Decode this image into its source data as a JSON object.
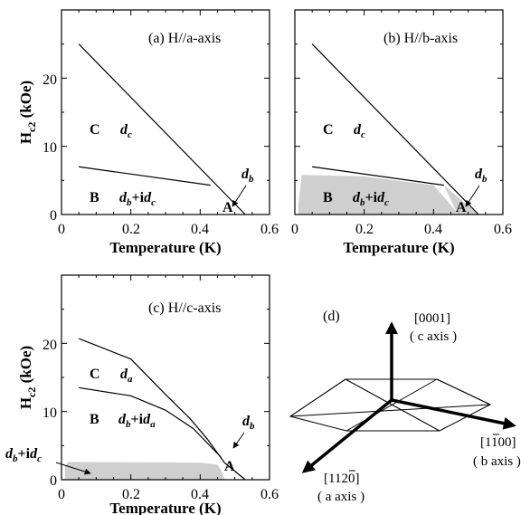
{
  "chart_data": [
    {
      "type": "line",
      "panel": "a",
      "title": "(a) H//a-axis",
      "xlabel": "Temperature (K)",
      "ylabel": "H_c2 (kOe)",
      "xlim": [
        0,
        0.6
      ],
      "ylim": [
        0,
        30
      ],
      "xticks": [
        "0",
        "0.2",
        "0.4",
        "0.6"
      ],
      "yticks": [
        "0",
        "10",
        "20"
      ],
      "series": [
        {
          "x": [
            0.05,
            0.53
          ],
          "y": [
            25,
            0
          ]
        },
        {
          "x": [
            0.05,
            0.43
          ],
          "y": [
            7,
            4.3
          ]
        }
      ],
      "shaded": [],
      "region_labels": [
        {
          "region": "C",
          "phase": "d",
          "phase_sub": "c"
        },
        {
          "region": "B",
          "phase": "d",
          "phase_sub": "b",
          "plus": "+i",
          "plus_sub": "c"
        },
        {
          "region": "A"
        }
      ],
      "annotation": {
        "phase": "d",
        "phase_sub": "b"
      }
    },
    {
      "type": "line",
      "panel": "b",
      "title": "(b) H//b-axis",
      "xlabel": "Temperature (K)",
      "ylabel": "",
      "xlim": [
        0,
        0.6
      ],
      "ylim": [
        0,
        30
      ],
      "xticks": [
        "0",
        "0.2",
        "0.4",
        "0.6"
      ],
      "yticks": [],
      "series": [
        {
          "x": [
            0.05,
            0.53
          ],
          "y": [
            25,
            0
          ]
        },
        {
          "x": [
            0.05,
            0.43
          ],
          "y": [
            7,
            4.3
          ]
        }
      ],
      "shaded": [
        {
          "x": [
            0.01,
            0.01,
            0.02,
            0.2,
            0.4,
            0.465,
            0.47
          ],
          "y": [
            0,
            1.5,
            5.8,
            5.6,
            4.3,
            0.5,
            0
          ]
        },
        {
          "x": [
            0.43,
            0.47,
            0.53
          ],
          "y": [
            4.3,
            0,
            0
          ]
        }
      ],
      "region_labels": [
        {
          "region": "C",
          "phase": "d",
          "phase_sub": "c"
        },
        {
          "region": "B",
          "phase": "d",
          "phase_sub": "b",
          "plus": "+i",
          "plus_sub": "c"
        },
        {
          "region": "A"
        }
      ],
      "annotation": {
        "phase": "d",
        "phase_sub": "b"
      }
    },
    {
      "type": "line",
      "panel": "c",
      "title": "(c) H//c-axis",
      "xlabel": "Temperature (K)",
      "ylabel": "H_c2 (kOe)",
      "xlim": [
        0,
        0.6
      ],
      "ylim": [
        0,
        30
      ],
      "xticks": [
        "0",
        "0.2",
        "0.4",
        "0.6"
      ],
      "yticks": [
        "0",
        "10",
        "20"
      ],
      "series": [
        {
          "x": [
            0.05,
            0.2,
            0.3,
            0.37,
            0.42,
            0.47,
            0.53
          ],
          "y": [
            20.7,
            17.7,
            12.5,
            9,
            6,
            2.5,
            0
          ]
        },
        {
          "x": [
            0.05,
            0.2,
            0.3,
            0.38,
            0.46
          ],
          "y": [
            13.5,
            12.3,
            10.2,
            7.5,
            3.3
          ]
        }
      ],
      "shaded": [
        {
          "x": [
            0.01,
            0.01,
            0.02,
            0.4,
            0.45,
            0.465,
            0.47
          ],
          "y": [
            0,
            2,
            2.6,
            2.5,
            2.2,
            1,
            0
          ]
        }
      ],
      "region_labels": [
        {
          "region": "C",
          "phase": "d",
          "phase_sub": "a"
        },
        {
          "region": "B",
          "phase": "d",
          "phase_sub": "b",
          "plus": "+i",
          "plus_sub": "a"
        },
        {
          "region": "A"
        }
      ],
      "annotation": {
        "phase": "d",
        "phase_sub": "b"
      },
      "annotation2": {
        "phase": "d",
        "phase_sub": "b",
        "plus": "+i",
        "plus_sub": "c"
      }
    }
  ],
  "panel_d": {
    "label": "(d)",
    "axes": [
      {
        "direction": "[0001]",
        "name": "( c axis )"
      },
      {
        "direction": "[1100]",
        "name": "( b axis )"
      },
      {
        "direction": "[1120]",
        "name": "( a axis )"
      }
    ]
  }
}
